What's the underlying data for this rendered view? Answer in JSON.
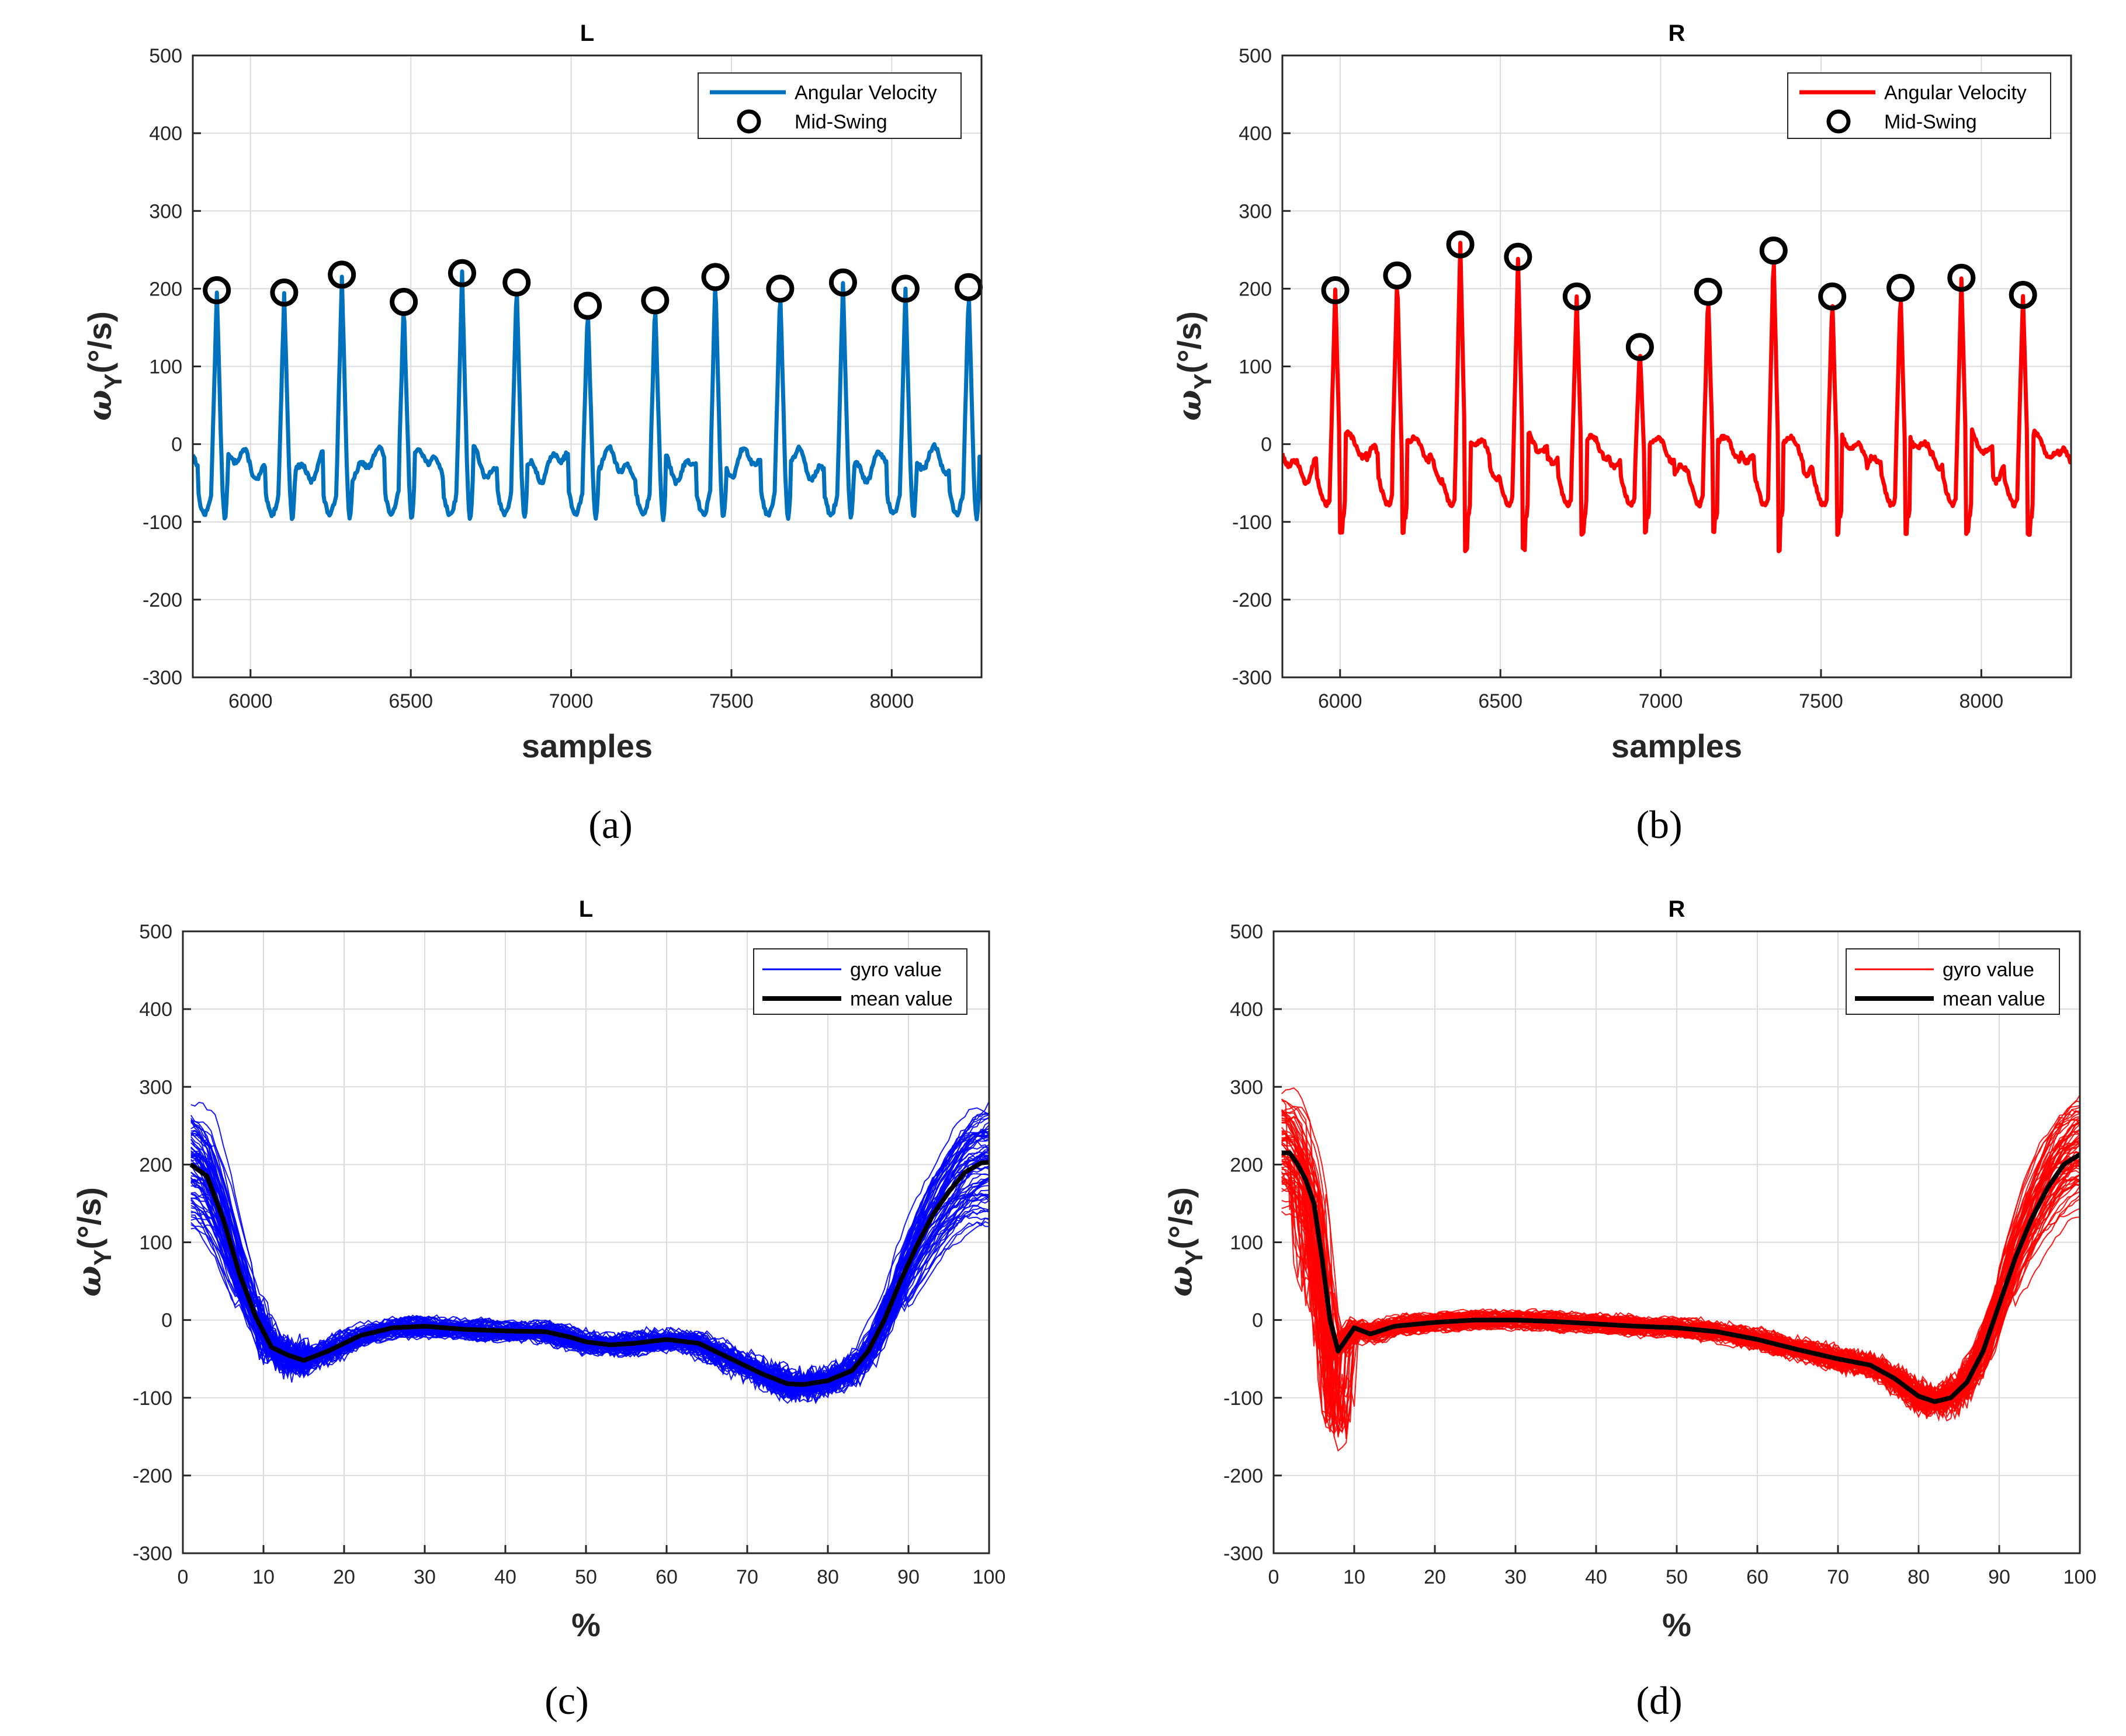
{
  "chart_data": [
    {
      "panel": "a",
      "caption": "(a)",
      "type": "line",
      "title": "L",
      "xlabel": "samples",
      "ylabel": "ω",
      "ylabel_sub": "Y",
      "ylabel_unit": "(°/s)",
      "xlim": [
        5820,
        8280
      ],
      "ylim": [
        -300,
        500
      ],
      "xticks": [
        6000,
        6500,
        7000,
        7500,
        8000
      ],
      "yticks": [
        -300,
        -200,
        -100,
        0,
        100,
        200,
        300,
        400,
        500
      ],
      "grid": true,
      "legend_position": "top-right",
      "series": [
        {
          "name": "Angular Velocity",
          "color": "#0072BD",
          "kind": "line"
        },
        {
          "name": "Mid-Swing",
          "color": "#000000",
          "kind": "marker"
        }
      ],
      "mid_swing_peaks": {
        "x": [
          5895,
          6105,
          6285,
          6478,
          6660,
          6830,
          7052,
          7262,
          7450,
          7652,
          7848,
          8043,
          8240
        ],
        "y": [
          198,
          195,
          218,
          183,
          220,
          208,
          178,
          185,
          215,
          200,
          208,
          200,
          202
        ]
      }
    },
    {
      "panel": "b",
      "caption": "(b)",
      "type": "line",
      "title": "R",
      "xlabel": "samples",
      "ylabel": "ω",
      "ylabel_sub": "Y",
      "ylabel_unit": "(°/s)",
      "xlim": [
        5820,
        8280
      ],
      "ylim": [
        -300,
        500
      ],
      "xticks": [
        6000,
        6500,
        7000,
        7500,
        8000
      ],
      "yticks": [
        -300,
        -200,
        -100,
        0,
        100,
        200,
        300,
        400,
        500
      ],
      "grid": true,
      "legend_position": "top-right",
      "series": [
        {
          "name": "Angular Velocity",
          "color": "#FF0000",
          "kind": "line"
        },
        {
          "name": "Mid-Swing",
          "color": "#000000",
          "kind": "marker"
        }
      ],
      "mid_swing_peaks": {
        "x": [
          5985,
          6178,
          6375,
          6555,
          6738,
          6935,
          7148,
          7352,
          7535,
          7748,
          7938,
          8130
        ],
        "y": [
          198,
          217,
          257,
          241,
          190,
          125,
          196,
          249,
          190,
          201,
          214,
          192
        ]
      }
    },
    {
      "panel": "c",
      "caption": "(c)",
      "type": "line",
      "title": "L",
      "xlabel": "%",
      "ylabel": "ω",
      "ylabel_sub": "Y",
      "ylabel_unit": "(°/s)",
      "xlim": [
        0,
        100
      ],
      "ylim": [
        -300,
        500
      ],
      "xticks": [
        0,
        10,
        20,
        30,
        40,
        50,
        60,
        70,
        80,
        90,
        100
      ],
      "yticks": [
        -300,
        -200,
        -100,
        0,
        100,
        200,
        300,
        400,
        500
      ],
      "grid": true,
      "legend_position": "top-right",
      "series": [
        {
          "name": "gyro value",
          "color": "#0000FF",
          "kind": "bundle"
        },
        {
          "name": "mean value",
          "color": "#000000",
          "kind": "line"
        }
      ],
      "mean_curve": {
        "x": [
          1,
          3,
          5,
          7,
          9,
          11,
          13,
          15,
          18,
          22,
          26,
          30,
          35,
          40,
          45,
          48,
          50,
          53,
          56,
          60,
          64,
          68,
          72,
          75,
          77,
          80,
          83,
          85,
          87,
          89,
          91,
          93,
          95,
          97,
          99,
          100
        ],
        "y": [
          200,
          185,
          130,
          60,
          5,
          -35,
          -45,
          -52,
          -40,
          -20,
          -10,
          -8,
          -12,
          -14,
          -15,
          -22,
          -28,
          -32,
          -30,
          -25,
          -30,
          -50,
          -70,
          -82,
          -83,
          -78,
          -65,
          -40,
          0,
          50,
          95,
          135,
          165,
          190,
          202,
          203
        ]
      }
    },
    {
      "panel": "d",
      "caption": "(d)",
      "type": "line",
      "title": "R",
      "xlabel": "%",
      "ylabel": "ω",
      "ylabel_sub": "Y",
      "ylabel_unit": "(°/s)",
      "xlim": [
        0,
        100
      ],
      "ylim": [
        -300,
        500
      ],
      "xticks": [
        0,
        10,
        20,
        30,
        40,
        50,
        60,
        70,
        80,
        90,
        100
      ],
      "yticks": [
        -300,
        -200,
        -100,
        0,
        100,
        200,
        300,
        400,
        500
      ],
      "grid": true,
      "legend_position": "top-right",
      "series": [
        {
          "name": "gyro value",
          "color": "#FF0000",
          "kind": "bundle"
        },
        {
          "name": "mean value",
          "color": "#000000",
          "kind": "line"
        }
      ],
      "mean_curve": {
        "x": [
          1,
          2,
          3,
          4,
          5,
          6,
          7,
          8,
          9,
          10,
          12,
          15,
          20,
          25,
          30,
          35,
          40,
          45,
          50,
          55,
          60,
          65,
          70,
          74,
          77,
          80,
          82,
          84,
          86,
          88,
          90,
          92,
          94,
          96,
          98,
          100
        ],
        "y": [
          215,
          215,
          200,
          180,
          150,
          80,
          0,
          -40,
          -25,
          -10,
          -18,
          -8,
          -3,
          0,
          0,
          -2,
          -5,
          -8,
          -10,
          -15,
          -25,
          -38,
          -50,
          -58,
          -75,
          -98,
          -105,
          -100,
          -80,
          -40,
          20,
          80,
          130,
          170,
          200,
          213
        ]
      }
    }
  ]
}
